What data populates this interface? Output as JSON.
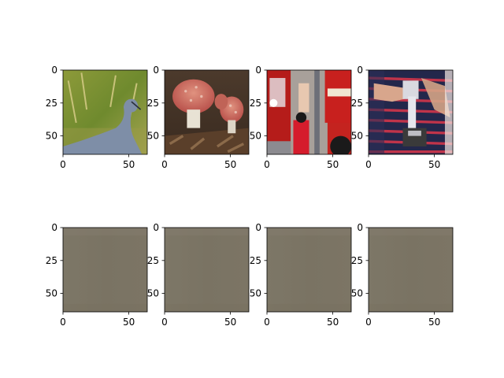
{
  "chart_data": {
    "type": "heatmap",
    "layout": "2x4 grid of image panels",
    "x_ticks": [
      0,
      50
    ],
    "y_ticks": [
      0,
      25,
      50
    ],
    "xlim": [
      0,
      64
    ],
    "ylim": [
      64,
      0
    ],
    "image_size": [
      64,
      64
    ],
    "panels": [
      {
        "row": 0,
        "col": 0,
        "content": "bird",
        "icon": "heron-photo"
      },
      {
        "row": 0,
        "col": 1,
        "content": "mushrooms",
        "icon": "mushroom-photo"
      },
      {
        "row": 0,
        "col": 2,
        "content": "fire truck",
        "icon": "firetruck-photo"
      },
      {
        "row": 0,
        "col": 3,
        "content": "person holding tool",
        "icon": "person-photo"
      },
      {
        "row": 1,
        "col": 0,
        "content": "uniform gray-brown",
        "icon": "flat-image",
        "color": "#7b7465"
      },
      {
        "row": 1,
        "col": 1,
        "content": "uniform gray-brown",
        "icon": "flat-image",
        "color": "#7b7465"
      },
      {
        "row": 1,
        "col": 2,
        "content": "uniform gray-brown",
        "icon": "flat-image",
        "color": "#7b7465"
      },
      {
        "row": 1,
        "col": 3,
        "content": "uniform gray-brown",
        "icon": "flat-image",
        "color": "#7b7465"
      }
    ]
  }
}
